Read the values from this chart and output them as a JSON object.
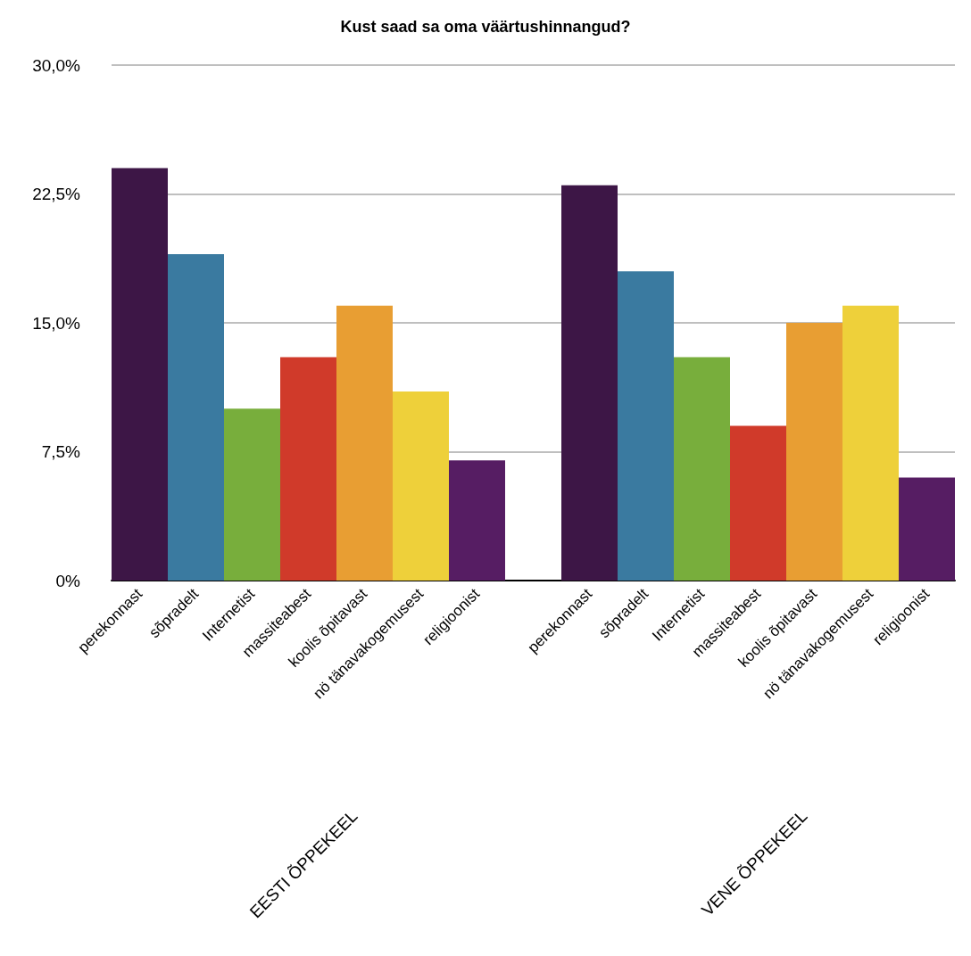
{
  "chart_data": {
    "type": "bar",
    "title": "Kust saad sa oma väärtushinnangud?",
    "categories": [
      "perekonnast",
      "sõpradelt",
      "Internetist",
      "massiteabest",
      "koolis õpitavast",
      "nö tänavakogemusest",
      "religioonist",
      "perekonnast",
      "sõpradelt",
      "Internetist",
      "massiteabest",
      "koolis õpitavast",
      "nö tänavakogemusest",
      "religioonist"
    ],
    "values": [
      24,
      19,
      10,
      13,
      16,
      11,
      7,
      23,
      18,
      13,
      9,
      15,
      16,
      6
    ],
    "colors": [
      "#3d1646",
      "#3a7aa0",
      "#78ae3c",
      "#d03a2a",
      "#e89e33",
      "#eed03a",
      "#561d63",
      "#3d1646",
      "#3a7aa0",
      "#78ae3c",
      "#d03a2a",
      "#e89e33",
      "#eed03a",
      "#561d63"
    ],
    "annotations": [
      "EESTI ÕPPEKEEL",
      "VENE ÕPPEKEEL"
    ],
    "ylim": [
      0,
      30
    ],
    "yticks": [
      {
        "value": 0,
        "label": "0%"
      },
      {
        "value": 7.5,
        "label": "7,5%"
      },
      {
        "value": 15,
        "label": "15,0%"
      },
      {
        "value": 22.5,
        "label": "22,5%"
      },
      {
        "value": 30,
        "label": "30,0%"
      }
    ],
    "grid": "y"
  }
}
